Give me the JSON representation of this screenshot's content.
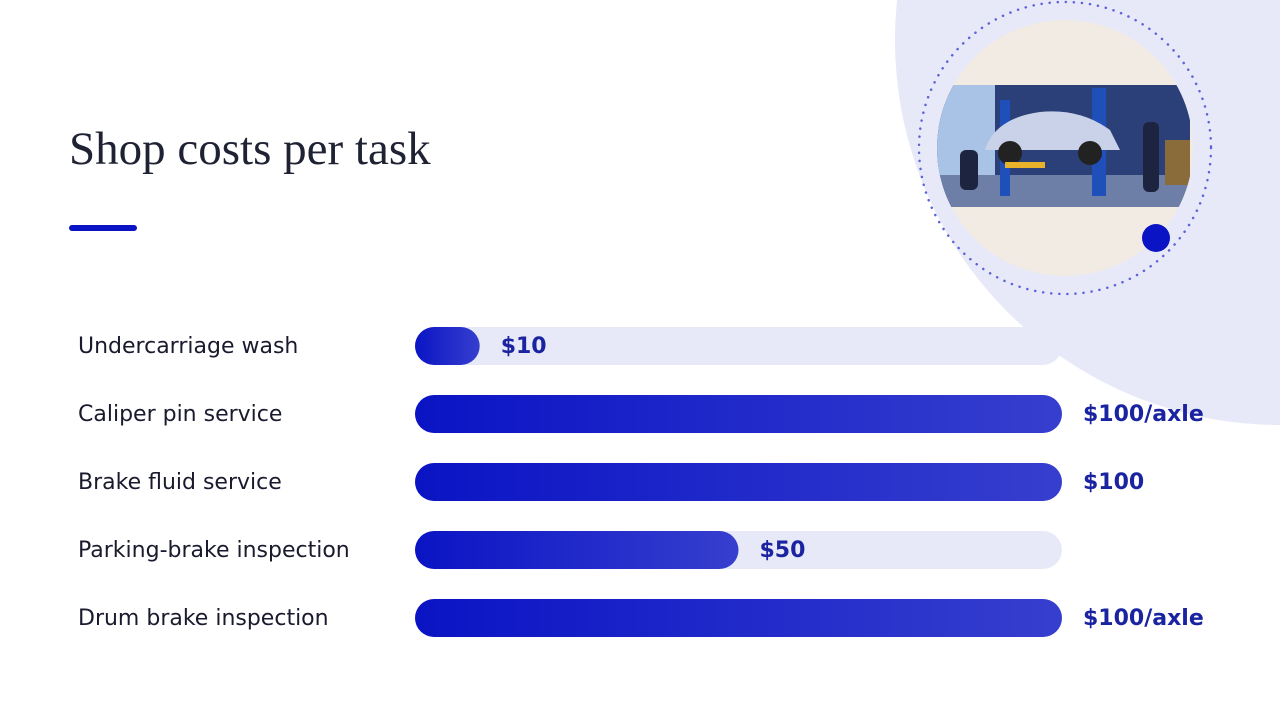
{
  "chart_data": {
    "type": "bar",
    "title": "Shop costs per task",
    "categories": [
      "Undercarriage wash",
      "Caliper pin service",
      "Brake fluid service",
      "Parking-brake inspection",
      "Drum brake inspection"
    ],
    "values": [
      10,
      100,
      100,
      50,
      100
    ],
    "value_labels": [
      "$10",
      "$100/axle",
      "$100",
      "$50",
      "$100/axle"
    ],
    "xlim": [
      0,
      100
    ],
    "color": "#0a14c4"
  }
}
